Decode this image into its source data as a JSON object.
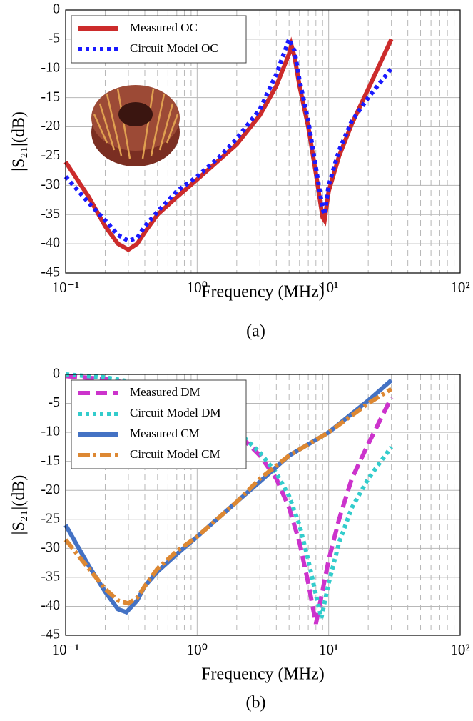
{
  "chart_data": [
    {
      "type": "line",
      "caption": "(a)",
      "xlabel": "Frequency (MHz)",
      "ylabel": "|S₂₁|(dB)",
      "xscale": "log",
      "xlim": [
        0.1,
        100
      ],
      "ylim": [
        -45,
        0
      ],
      "xticks": [
        {
          "value": 0.1,
          "label": "10⁻¹"
        },
        {
          "value": 1,
          "label": "10⁰"
        },
        {
          "value": 10,
          "label": "10¹"
        },
        {
          "value": 100,
          "label": "10²"
        }
      ],
      "xminorticks": [
        0.2,
        0.3,
        0.4,
        0.5,
        0.6,
        0.7,
        0.8,
        0.9,
        2,
        3,
        4,
        5,
        6,
        7,
        8,
        9,
        20,
        30,
        40,
        50,
        60,
        70,
        80,
        90
      ],
      "yticks": [
        0,
        -5,
        -10,
        -15,
        -20,
        -25,
        -30,
        -35,
        -40,
        -45
      ],
      "grid": true,
      "legend": "upper left",
      "series": [
        {
          "name": "Measured OC",
          "color": "#cc2b2b",
          "style": "solid",
          "x": [
            0.1,
            0.15,
            0.2,
            0.25,
            0.3,
            0.35,
            0.4,
            0.5,
            0.7,
            1,
            1.5,
            2,
            3,
            4,
            5,
            5.2,
            5.5,
            6,
            7,
            8,
            9,
            9.3,
            10,
            12,
            15,
            20,
            30
          ],
          "values": [
            -26,
            -32,
            -37,
            -40,
            -41,
            -40,
            -38,
            -35,
            -32,
            -29,
            -25.5,
            -23,
            -18,
            -13,
            -7.5,
            -6,
            -8,
            -13,
            -20,
            -28,
            -35.5,
            -36,
            -31,
            -25,
            -19.5,
            -13.5,
            -5
          ]
        },
        {
          "name": "Circuit Model OC",
          "color": "#1a1aff",
          "style": "dotted",
          "x": [
            0.1,
            0.15,
            0.2,
            0.25,
            0.3,
            0.35,
            0.4,
            0.5,
            0.7,
            1,
            1.5,
            2,
            3,
            4,
            5,
            5.5,
            6,
            7,
            8,
            9,
            9.3,
            10,
            12,
            15,
            20,
            30
          ],
          "values": [
            -28.5,
            -33,
            -36,
            -38.5,
            -39.5,
            -39,
            -37,
            -34.5,
            -31,
            -28.5,
            -25,
            -22,
            -17,
            -11,
            -5,
            -7,
            -12,
            -19,
            -27,
            -34,
            -35,
            -30,
            -24,
            -19,
            -15,
            -10
          ]
        }
      ]
    },
    {
      "type": "line",
      "caption": "(b)",
      "xlabel": "Frequency (MHz)",
      "ylabel": "|S₂₁|(dB)",
      "xscale": "log",
      "xlim": [
        0.1,
        100
      ],
      "ylim": [
        -45,
        0
      ],
      "xticks": [
        {
          "value": 0.1,
          "label": "10⁻¹"
        },
        {
          "value": 1,
          "label": "10⁰"
        },
        {
          "value": 10,
          "label": "10¹"
        },
        {
          "value": 100,
          "label": "10²"
        }
      ],
      "xminorticks": [
        0.2,
        0.3,
        0.4,
        0.5,
        0.6,
        0.7,
        0.8,
        0.9,
        2,
        3,
        4,
        5,
        6,
        7,
        8,
        9,
        20,
        30,
        40,
        50,
        60,
        70,
        80,
        90
      ],
      "yticks": [
        0,
        -5,
        -10,
        -15,
        -20,
        -25,
        -30,
        -35,
        -40,
        -45
      ],
      "grid": true,
      "legend": "upper left",
      "series": [
        {
          "name": "Measured DM",
          "color": "#cc33cc",
          "style": "dashed",
          "x": [
            0.1,
            0.2,
            0.3,
            0.5,
            1,
            2,
            3,
            4,
            5,
            6,
            7,
            8,
            8.5,
            10,
            12,
            15,
            20,
            30
          ],
          "values": [
            -0.3,
            -0.8,
            -1.5,
            -3,
            -6,
            -10,
            -14,
            -18,
            -23,
            -29,
            -36,
            -43,
            -40,
            -32,
            -25,
            -18,
            -12,
            -4
          ]
        },
        {
          "name": "Circuit Model DM",
          "color": "#33cccc",
          "style": "dotted",
          "x": [
            0.1,
            0.2,
            0.3,
            0.5,
            1,
            2,
            2.3,
            3,
            4,
            5,
            6,
            7,
            8,
            8.8,
            10,
            12,
            15,
            20,
            30
          ],
          "values": [
            0,
            -0.5,
            -1.2,
            -3,
            -6,
            -10,
            -11,
            -13.5,
            -17,
            -21,
            -26,
            -32,
            -38,
            -42,
            -36,
            -29,
            -23,
            -18,
            -12.5
          ]
        },
        {
          "name": "Measured CM",
          "color": "#4472c4",
          "style": "solid",
          "x": [
            0.1,
            0.15,
            0.2,
            0.25,
            0.29,
            0.35,
            0.4,
            0.5,
            0.7,
            1,
            2,
            3,
            5,
            10,
            20,
            30
          ],
          "values": [
            -26,
            -33,
            -37.5,
            -40.5,
            -41,
            -39,
            -36.5,
            -34,
            -31,
            -28,
            -22,
            -18.5,
            -14,
            -10,
            -4.5,
            -1
          ]
        },
        {
          "name": "Circuit Model CM",
          "color": "#dd8833",
          "style": "dashdot",
          "x": [
            0.1,
            0.15,
            0.2,
            0.25,
            0.3,
            0.35,
            0.4,
            0.5,
            0.7,
            1,
            2,
            3,
            5,
            10,
            20,
            30
          ],
          "values": [
            -28.5,
            -33.5,
            -37,
            -39,
            -39.5,
            -38.5,
            -36.5,
            -33.5,
            -30.5,
            -28,
            -22,
            -18,
            -14,
            -10,
            -5,
            -2.5
          ]
        }
      ]
    }
  ]
}
